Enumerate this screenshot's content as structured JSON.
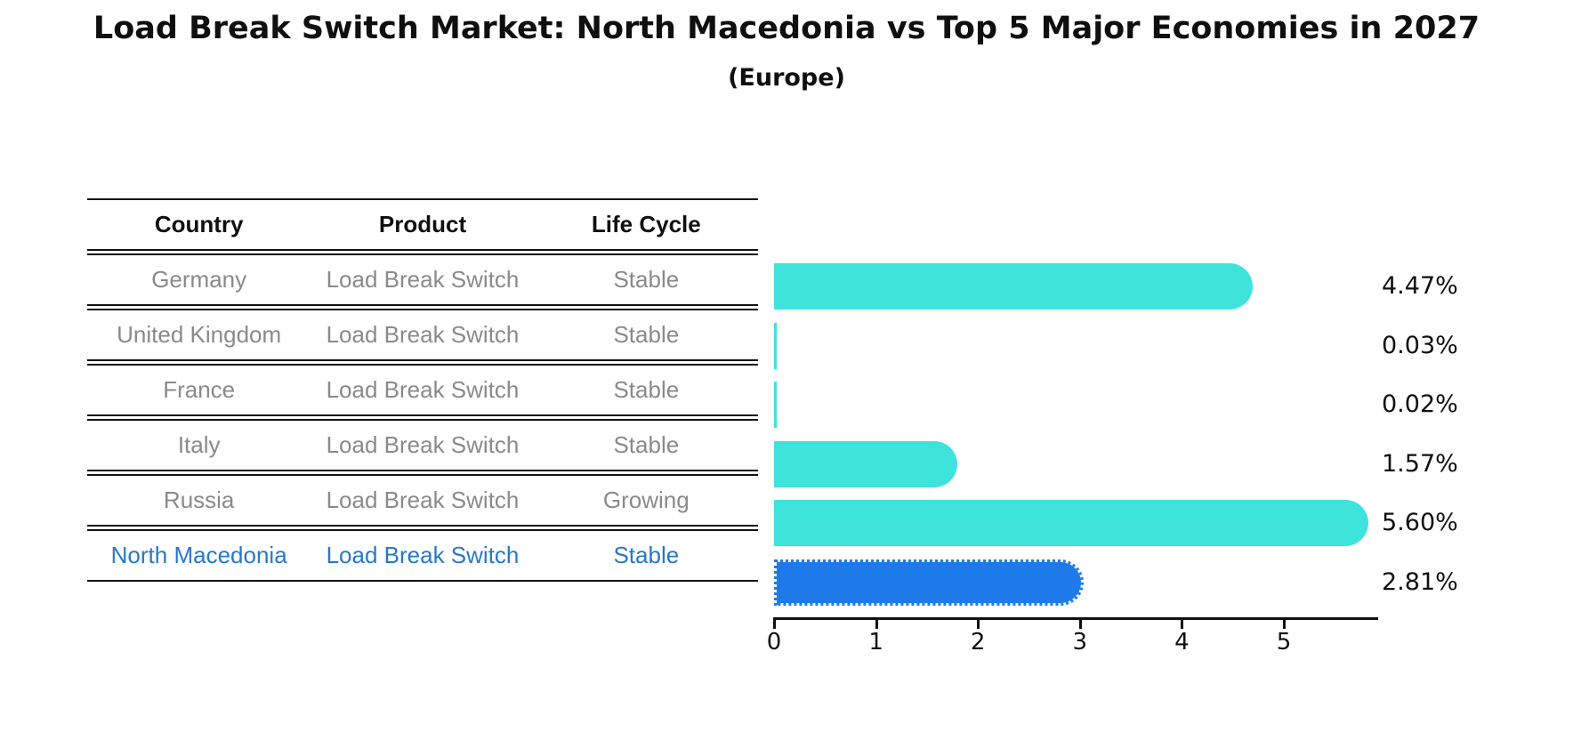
{
  "header": {
    "title": "Load Break Switch Market: North Macedonia vs Top 5 Major Economies in 2027",
    "subtitle": "(Europe)"
  },
  "table": {
    "headers": {
      "country": "Country",
      "product": "Product",
      "lifecycle": "Life Cycle"
    },
    "rows": [
      {
        "country": "Germany",
        "product": "Load Break Switch",
        "lifecycle": "Stable",
        "highlight": false
      },
      {
        "country": "United Kingdom",
        "product": "Load Break Switch",
        "lifecycle": "Stable",
        "highlight": false
      },
      {
        "country": "France",
        "product": "Load Break Switch",
        "lifecycle": "Stable",
        "highlight": false
      },
      {
        "country": "Italy",
        "product": "Load Break Switch",
        "lifecycle": "Stable",
        "highlight": false
      },
      {
        "country": "Russia",
        "product": "Load Break Switch",
        "lifecycle": "Growing",
        "highlight": false
      },
      {
        "country": "North Macedonia",
        "product": "Load Break Switch",
        "lifecycle": "Stable",
        "highlight": true
      }
    ]
  },
  "chart_data": {
    "type": "bar",
    "orientation": "horizontal",
    "title": "Load Break Switch Market: North Macedonia vs Top 5 Major Economies in 2027",
    "subtitle": "(Europe)",
    "categories": [
      "Germany",
      "United Kingdom",
      "France",
      "Italy",
      "Russia",
      "North Macedonia"
    ],
    "values": [
      4.47,
      0.03,
      0.02,
      1.57,
      5.6,
      2.81
    ],
    "value_labels": [
      "4.47%",
      "0.03%",
      "0.02%",
      "1.57%",
      "5.60%",
      "2.81%"
    ],
    "xticks": [
      "0",
      "1",
      "2",
      "3",
      "4",
      "5"
    ],
    "xlim": [
      0,
      5.92
    ],
    "grid": false,
    "legend": false,
    "bar_color": "#3ee3dc",
    "highlight_bar_color": "#1e7ae8",
    "highlight_index": 5,
    "highlight_text_color": "#2878c8",
    "axis_color": "#111111",
    "text_color_muted": "#8a8a8a"
  }
}
